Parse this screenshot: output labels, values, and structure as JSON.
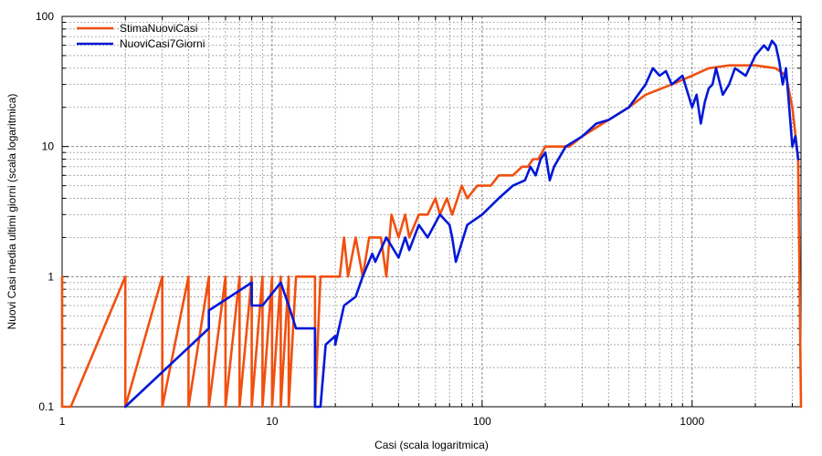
{
  "chart_data": {
    "type": "line",
    "xlabel": "Casi (scala logaritmica)",
    "ylabel": "Nuovi Casi media ultimi giorni (scala logaritmica)",
    "x_scale": "log",
    "y_scale": "log",
    "xlim": [
      1,
      3300
    ],
    "ylim": [
      0.1,
      100
    ],
    "x_ticks": [
      1,
      10,
      100,
      1000
    ],
    "x_tick_labels": [
      "1",
      "10",
      "100",
      "1000"
    ],
    "y_ticks": [
      0.1,
      1,
      10,
      100
    ],
    "y_tick_labels": [
      "0.1",
      "1",
      "10",
      "100"
    ],
    "grid": true,
    "legend_position": "top-left",
    "series": [
      {
        "name": "StimaNuoviCasi",
        "color": "#f05010",
        "points": [
          [
            1,
            1
          ],
          [
            1,
            0.1
          ],
          [
            1.1,
            0.1
          ],
          [
            2,
            1
          ],
          [
            2,
            0.1
          ],
          [
            3,
            1
          ],
          [
            3,
            0.1
          ],
          [
            4,
            1
          ],
          [
            4,
            0.1
          ],
          [
            5,
            1
          ],
          [
            5,
            0.1
          ],
          [
            6,
            1
          ],
          [
            6,
            0.1
          ],
          [
            7,
            1
          ],
          [
            7,
            0.1
          ],
          [
            8,
            1
          ],
          [
            8,
            0.1
          ],
          [
            9,
            1
          ],
          [
            9,
            0.1
          ],
          [
            10,
            1
          ],
          [
            10,
            0.1
          ],
          [
            11,
            1
          ],
          [
            11,
            0.1
          ],
          [
            12,
            1
          ],
          [
            12,
            0.1
          ],
          [
            13,
            1
          ],
          [
            14,
            1
          ],
          [
            15,
            1
          ],
          [
            16,
            1
          ],
          [
            16,
            0.1
          ],
          [
            17,
            1
          ],
          [
            21,
            1
          ],
          [
            22,
            2
          ],
          [
            23,
            1
          ],
          [
            25,
            2
          ],
          [
            27,
            1
          ],
          [
            29,
            2
          ],
          [
            33,
            2
          ],
          [
            35,
            1
          ],
          [
            37,
            3
          ],
          [
            40,
            2
          ],
          [
            43,
            3
          ],
          [
            45,
            2
          ],
          [
            50,
            3
          ],
          [
            55,
            3
          ],
          [
            60,
            4
          ],
          [
            63,
            3
          ],
          [
            68,
            4
          ],
          [
            72,
            3
          ],
          [
            80,
            5
          ],
          [
            85,
            4
          ],
          [
            95,
            5
          ],
          [
            110,
            5
          ],
          [
            120,
            6
          ],
          [
            140,
            6
          ],
          [
            155,
            7
          ],
          [
            165,
            7
          ],
          [
            175,
            8
          ],
          [
            185,
            8
          ],
          [
            200,
            10
          ],
          [
            260,
            10
          ],
          [
            300,
            12
          ],
          [
            400,
            16
          ],
          [
            500,
            20
          ],
          [
            600,
            25
          ],
          [
            800,
            30
          ],
          [
            1000,
            35
          ],
          [
            1200,
            40
          ],
          [
            1500,
            42
          ],
          [
            2000,
            42
          ],
          [
            2500,
            40
          ],
          [
            2800,
            35
          ],
          [
            3000,
            20
          ],
          [
            3200,
            8
          ],
          [
            3300,
            0.1
          ]
        ]
      },
      {
        "name": "NuoviCasi7Giorni",
        "color": "#0018d8",
        "points": [
          [
            2,
            0.1
          ],
          [
            5,
            0.4
          ],
          [
            5,
            0.55
          ],
          [
            8,
            0.9
          ],
          [
            8,
            0.6
          ],
          [
            9,
            0.6
          ],
          [
            11,
            0.9
          ],
          [
            12,
            0.6
          ],
          [
            13,
            0.4
          ],
          [
            16,
            0.4
          ],
          [
            16,
            0.1
          ],
          [
            17,
            0.1
          ],
          [
            18,
            0.3
          ],
          [
            20,
            0.35
          ],
          [
            20,
            0.3
          ],
          [
            22,
            0.6
          ],
          [
            25,
            0.7
          ],
          [
            27,
            1
          ],
          [
            30,
            1.5
          ],
          [
            31,
            1.3
          ],
          [
            35,
            2
          ],
          [
            40,
            1.4
          ],
          [
            43,
            2
          ],
          [
            45,
            1.6
          ],
          [
            50,
            2.5
          ],
          [
            55,
            2
          ],
          [
            63,
            3
          ],
          [
            70,
            2.5
          ],
          [
            72,
            2
          ],
          [
            75,
            1.3
          ],
          [
            85,
            2.5
          ],
          [
            100,
            3
          ],
          [
            120,
            4
          ],
          [
            140,
            5
          ],
          [
            160,
            5.5
          ],
          [
            170,
            7
          ],
          [
            180,
            6
          ],
          [
            190,
            8
          ],
          [
            200,
            9
          ],
          [
            210,
            5.5
          ],
          [
            220,
            7
          ],
          [
            250,
            10
          ],
          [
            300,
            12
          ],
          [
            350,
            15
          ],
          [
            400,
            16
          ],
          [
            500,
            20
          ],
          [
            600,
            30
          ],
          [
            650,
            40
          ],
          [
            700,
            35
          ],
          [
            750,
            38
          ],
          [
            800,
            30
          ],
          [
            900,
            35
          ],
          [
            1000,
            20
          ],
          [
            1050,
            25
          ],
          [
            1100,
            15
          ],
          [
            1150,
            22
          ],
          [
            1200,
            28
          ],
          [
            1250,
            30
          ],
          [
            1300,
            40
          ],
          [
            1400,
            25
          ],
          [
            1500,
            30
          ],
          [
            1600,
            40
          ],
          [
            1800,
            35
          ],
          [
            2000,
            50
          ],
          [
            2200,
            60
          ],
          [
            2300,
            55
          ],
          [
            2400,
            65
          ],
          [
            2500,
            60
          ],
          [
            2600,
            45
          ],
          [
            2700,
            30
          ],
          [
            2800,
            40
          ],
          [
            2900,
            20
          ],
          [
            3000,
            10
          ],
          [
            3100,
            12
          ],
          [
            3200,
            8
          ]
        ]
      }
    ]
  }
}
